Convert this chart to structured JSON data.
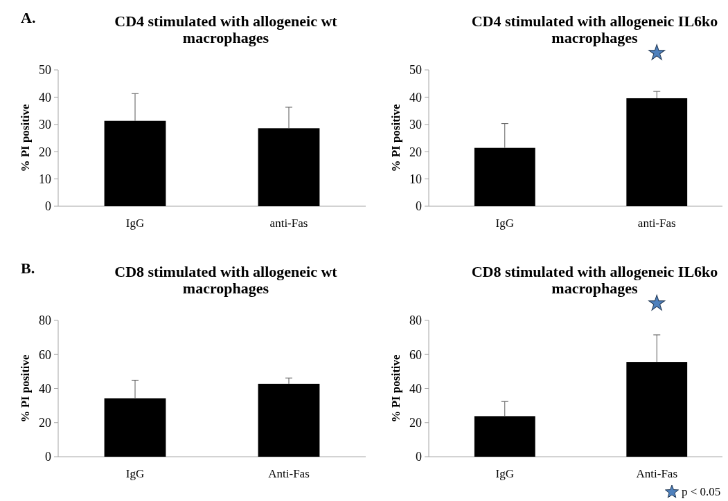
{
  "chart_data": [
    {
      "type": "bar",
      "title": "CD4 stimulated with allogeneic wt macrophages",
      "ylabel": "% PI positive",
      "categories": [
        "IgG",
        "anti-Fas"
      ],
      "values": [
        31.3,
        28.6
      ],
      "color": "#000000",
      "errors": [
        [
          31.3,
          41.3
        ],
        [
          28.6,
          36.3
        ]
      ],
      "ylim": [
        0,
        50
      ],
      "yticks": [
        0,
        10,
        20,
        30,
        40,
        50
      ],
      "annotations": [
        "A."
      ]
    },
    {
      "type": "bar",
      "title": "CD4 stimulated with allogeneic IL6ko macrophages",
      "ylabel": "% PI positive",
      "categories": [
        "IgG",
        "anti-Fas"
      ],
      "values": [
        21.4,
        39.6
      ],
      "color": "#000000",
      "errors": [
        [
          21.4,
          30.3
        ],
        [
          39.6,
          42.1
        ]
      ],
      "ylim": [
        0,
        50
      ],
      "yticks": [
        0,
        10,
        20,
        30,
        40,
        50
      ],
      "annotations": [
        "★"
      ]
    },
    {
      "type": "bar",
      "title": "CD8 stimulated with allogeneic wt macrophages",
      "ylabel": "% PI positive",
      "categories": [
        "IgG",
        "Anti-Fas"
      ],
      "values": [
        34.3,
        42.7
      ],
      "color": "#000000",
      "errors": [
        [
          34.3,
          44.9
        ],
        [
          42.7,
          46.2
        ]
      ],
      "ylim": [
        0,
        80
      ],
      "yticks": [
        0,
        20,
        40,
        60,
        80
      ],
      "annotations": [
        "B."
      ]
    },
    {
      "type": "bar",
      "title": "CD8 stimulated with allogeneic IL6ko macrophages",
      "ylabel": "% PI positive",
      "categories": [
        "IgG",
        "Anti-Fas"
      ],
      "values": [
        23.8,
        55.6
      ],
      "color": "#000000",
      "errors": [
        [
          23.8,
          32.4
        ],
        [
          55.6,
          71.5
        ]
      ],
      "ylim": [
        0,
        80
      ],
      "yticks": [
        0,
        20,
        40,
        60,
        80
      ],
      "annotations": [
        "★",
        "p < 0.05"
      ]
    }
  ]
}
